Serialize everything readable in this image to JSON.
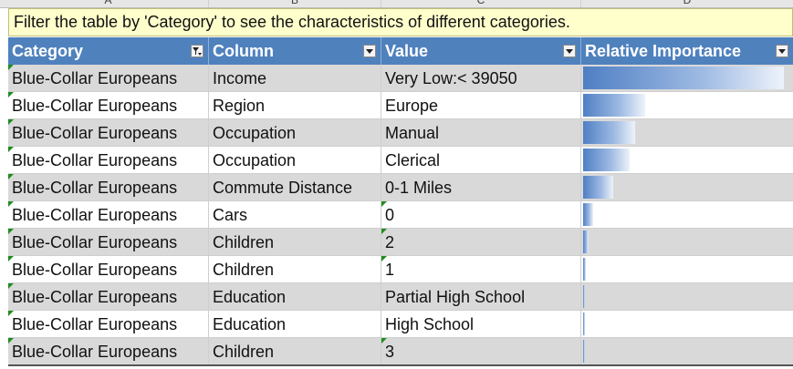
{
  "spreadsheet": {
    "column_letters": [
      "A",
      "B",
      "C",
      "D"
    ],
    "note": "Filter the table by 'Category' to see the characteristics of different categories.",
    "table": {
      "headers": [
        "Category",
        "Column",
        "Value",
        "Relative Importance"
      ],
      "rows": [
        {
          "category": "Blue-Collar Europeans",
          "column": "Income",
          "value": "Very Low:< 39050",
          "importance": 1.0
        },
        {
          "category": "Blue-Collar Europeans",
          "column": "Region",
          "value": "Europe",
          "importance": 0.31
        },
        {
          "category": "Blue-Collar Europeans",
          "column": "Occupation",
          "value": "Manual",
          "importance": 0.26
        },
        {
          "category": "Blue-Collar Europeans",
          "column": "Occupation",
          "value": "Clerical",
          "importance": 0.23
        },
        {
          "category": "Blue-Collar Europeans",
          "column": "Commute Distance",
          "value": "0-1 Miles",
          "importance": 0.15
        },
        {
          "category": "Blue-Collar Europeans",
          "column": "Cars",
          "value": "0",
          "importance": 0.05
        },
        {
          "category": "Blue-Collar Europeans",
          "column": "Children",
          "value": "2",
          "importance": 0.025
        },
        {
          "category": "Blue-Collar Europeans",
          "column": "Children",
          "value": "1",
          "importance": 0.015
        },
        {
          "category": "Blue-Collar Europeans",
          "column": "Education",
          "value": "Partial High School",
          "importance": 0.008
        },
        {
          "category": "Blue-Collar Europeans",
          "column": "Education",
          "value": "High School",
          "importance": 0.006
        },
        {
          "category": "Blue-Collar Europeans",
          "column": "Children",
          "value": "3",
          "importance": 0.005
        }
      ]
    },
    "colors": {
      "header": "#4f81bd",
      "shade": "#d9d9d9",
      "note": "#ffffcc",
      "bar": "#4f7fc4"
    }
  }
}
